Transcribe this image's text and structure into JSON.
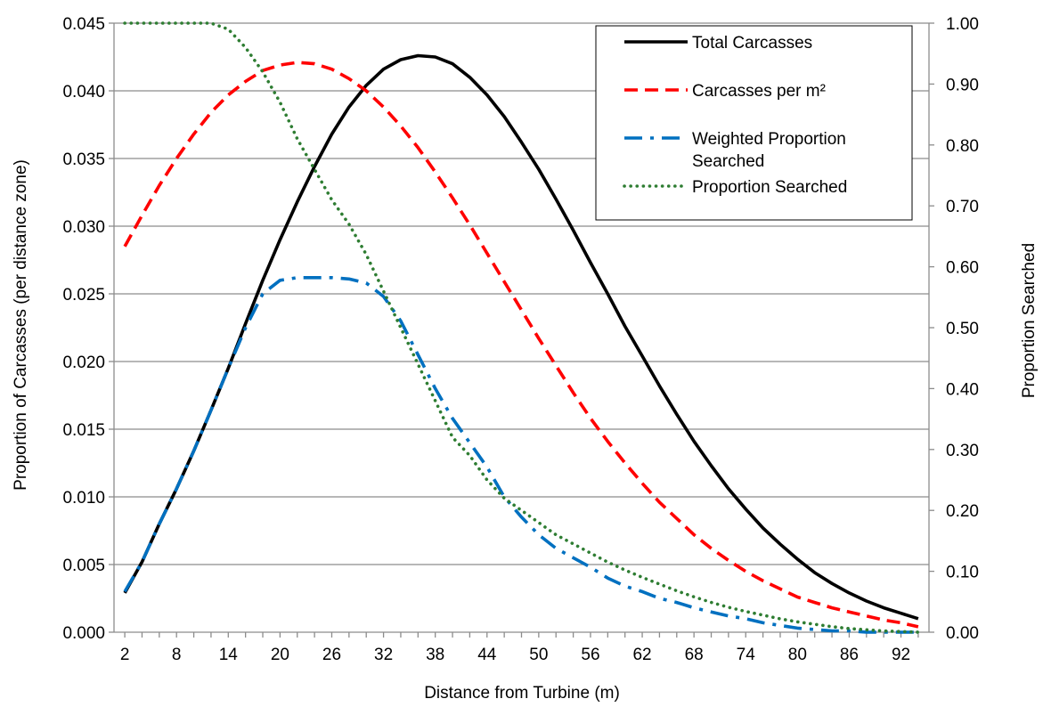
{
  "chart_data": {
    "type": "line",
    "x": [
      2,
      4,
      6,
      8,
      10,
      12,
      14,
      16,
      18,
      20,
      22,
      24,
      26,
      28,
      30,
      32,
      34,
      36,
      38,
      40,
      42,
      44,
      46,
      48,
      50,
      52,
      54,
      56,
      58,
      60,
      62,
      64,
      66,
      68,
      70,
      72,
      74,
      76,
      78,
      80,
      82,
      84,
      86,
      88,
      90,
      92,
      94
    ],
    "x_ticks": [
      2,
      8,
      14,
      20,
      26,
      32,
      38,
      44,
      50,
      56,
      62,
      68,
      74,
      80,
      86,
      92
    ],
    "xlabel": "Distance from Turbine (m)",
    "ylabel_left": "Proportion of Carcasses (per distance zone)",
    "ylabel_right": "Proportion Searched",
    "ylim_left": [
      0,
      0.045
    ],
    "ylim_right": [
      0,
      1.0
    ],
    "y_ticks_left": [
      "0.000",
      "0.005",
      "0.010",
      "0.015",
      "0.020",
      "0.025",
      "0.030",
      "0.035",
      "0.040",
      "0.045"
    ],
    "y_ticks_right": [
      "0.00",
      "0.10",
      "0.20",
      "0.30",
      "0.40",
      "0.50",
      "0.60",
      "0.70",
      "0.80",
      "0.90",
      "1.00"
    ],
    "grid": true,
    "legend_position": "top-right",
    "series": [
      {
        "name": "Total Carcasses",
        "axis": "left",
        "color": "#000000",
        "style": "solid",
        "values": [
          0.0029,
          0.0052,
          0.008,
          0.0106,
          0.0134,
          0.0164,
          0.0195,
          0.0228,
          0.026,
          0.029,
          0.0318,
          0.0344,
          0.0368,
          0.0388,
          0.0404,
          0.0416,
          0.0423,
          0.0426,
          0.0425,
          0.042,
          0.041,
          0.0397,
          0.0381,
          0.0362,
          0.0342,
          0.032,
          0.0297,
          0.0273,
          0.025,
          0.0226,
          0.0204,
          0.0182,
          0.0161,
          0.0141,
          0.0123,
          0.0106,
          0.0091,
          0.0077,
          0.0065,
          0.0054,
          0.0044,
          0.0036,
          0.0029,
          0.0023,
          0.0018,
          0.0014,
          0.001
        ]
      },
      {
        "name": "Carcasses per m²",
        "axis": "left",
        "color": "#ff0000",
        "style": "dashed",
        "values": [
          0.0285,
          0.0308,
          0.033,
          0.035,
          0.0368,
          0.0384,
          0.0397,
          0.0407,
          0.0415,
          0.0419,
          0.0421,
          0.042,
          0.0416,
          0.0409,
          0.04,
          0.0388,
          0.0374,
          0.0358,
          0.034,
          0.0321,
          0.0301,
          0.028,
          0.0259,
          0.0238,
          0.0217,
          0.0197,
          0.0177,
          0.0158,
          0.0141,
          0.0125,
          0.011,
          0.0096,
          0.0084,
          0.0072,
          0.0062,
          0.0053,
          0.0045,
          0.0038,
          0.0032,
          0.0026,
          0.0022,
          0.0018,
          0.0015,
          0.0012,
          0.0009,
          0.0007,
          0.0004
        ]
      },
      {
        "name": "Weighted Proportion Searched",
        "axis": "left",
        "color": "#0070c0",
        "style": "dashdot",
        "values": [
          0.003,
          0.0052,
          0.008,
          0.0106,
          0.0134,
          0.0164,
          0.0195,
          0.0225,
          0.025,
          0.026,
          0.0262,
          0.0262,
          0.0262,
          0.0261,
          0.0258,
          0.0248,
          0.023,
          0.0205,
          0.018,
          0.0158,
          0.014,
          0.0122,
          0.01,
          0.0085,
          0.0072,
          0.0062,
          0.0055,
          0.0048,
          0.004,
          0.0034,
          0.003,
          0.0025,
          0.0022,
          0.0018,
          0.0015,
          0.0012,
          0.001,
          0.0007,
          0.0005,
          0.0003,
          0.0002,
          0.0001,
          0.0001,
          0.0,
          0.0,
          0.0,
          0.0
        ]
      },
      {
        "name": "Proportion Searched",
        "axis": "right",
        "color": "#2e7d32",
        "style": "dotted",
        "values": [
          1.0,
          1.0,
          1.0,
          1.0,
          1.0,
          1.0,
          0.99,
          0.96,
          0.92,
          0.87,
          0.81,
          0.76,
          0.71,
          0.67,
          0.62,
          0.56,
          0.5,
          0.44,
          0.38,
          0.32,
          0.29,
          0.25,
          0.22,
          0.2,
          0.18,
          0.16,
          0.145,
          0.13,
          0.115,
          0.102,
          0.09,
          0.079,
          0.068,
          0.058,
          0.049,
          0.041,
          0.034,
          0.028,
          0.022,
          0.017,
          0.013,
          0.009,
          0.006,
          0.004,
          0.002,
          0.001,
          0.0
        ]
      }
    ],
    "legend": {
      "items": [
        {
          "label": "Total Carcasses"
        },
        {
          "label": "Carcasses per m²"
        },
        {
          "label": "Weighted Proportion",
          "label2": "Searched"
        },
        {
          "label": "Proportion Searched"
        }
      ]
    }
  }
}
